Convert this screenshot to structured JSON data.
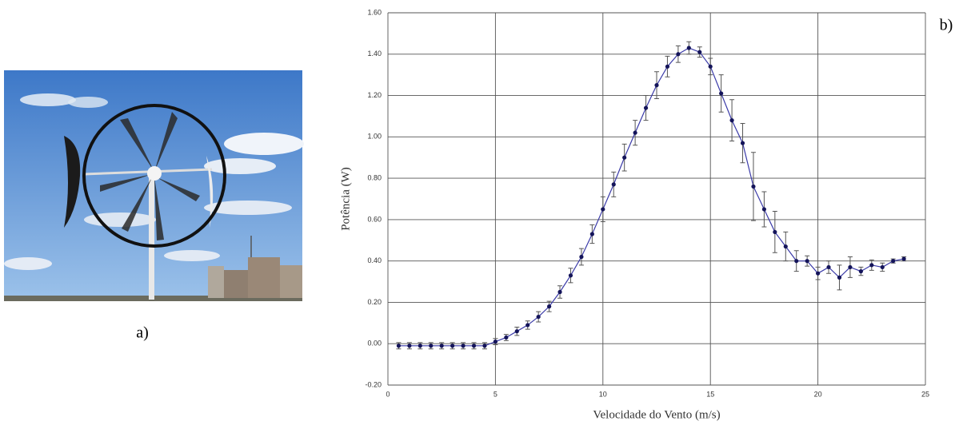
{
  "panel_labels": [
    "a)",
    "b)"
  ],
  "chart_data": {
    "type": "line",
    "xlabel": "Velocidade do Vento (m/s)",
    "ylabel": "Potência (W)",
    "x": [
      0.5,
      1,
      1.5,
      2,
      2.5,
      3,
      3.5,
      4,
      4.5,
      5,
      5.5,
      6,
      6.5,
      7,
      7.5,
      8,
      8.5,
      9,
      9.5,
      10,
      10.5,
      11,
      11.5,
      12,
      12.5,
      13,
      13.5,
      14,
      14.5,
      15,
      15.5,
      16,
      16.5,
      17,
      17.5,
      18,
      18.5,
      19,
      19.5,
      20,
      20.5,
      21,
      21.5,
      22,
      22.5,
      23,
      23.5,
      24
    ],
    "values": [
      -0.01,
      -0.01,
      -0.01,
      -0.01,
      -0.01,
      -0.01,
      -0.01,
      -0.01,
      -0.01,
      0.01,
      0.03,
      0.06,
      0.09,
      0.13,
      0.18,
      0.25,
      0.33,
      0.42,
      0.53,
      0.65,
      0.77,
      0.9,
      1.02,
      1.14,
      1.25,
      1.34,
      1.4,
      1.43,
      1.41,
      1.34,
      1.21,
      1.08,
      0.97,
      0.76,
      0.65,
      0.54,
      0.47,
      0.4,
      0.4,
      0.34,
      0.37,
      0.32,
      0.37,
      0.35,
      0.38,
      0.37,
      0.4,
      0.41
    ],
    "errors": [
      0.015,
      0.015,
      0.015,
      0.015,
      0.015,
      0.015,
      0.015,
      0.015,
      0.015,
      0.015,
      0.015,
      0.02,
      0.02,
      0.025,
      0.025,
      0.03,
      0.035,
      0.04,
      0.045,
      0.06,
      0.06,
      0.065,
      0.06,
      0.06,
      0.065,
      0.05,
      0.04,
      0.03,
      0.025,
      0.04,
      0.09,
      0.1,
      0.095,
      0.165,
      0.085,
      0.1,
      0.07,
      0.05,
      0.025,
      0.03,
      0.03,
      0.06,
      0.05,
      0.02,
      0.025,
      0.02,
      0.01,
      0.01
    ],
    "color": "#3a3aa8",
    "marker_color": "#14145a",
    "error_color": "#555555",
    "xlim": [
      0,
      25
    ],
    "xticks": [
      0,
      5,
      10,
      15,
      20,
      25
    ],
    "ylim": [
      -0.2,
      1.6
    ],
    "yticks": [
      {
        "value": -0.2,
        "label": "-0.20"
      },
      {
        "value": 0,
        "label": "0.00"
      },
      {
        "value": 0.2,
        "label": "0.20"
      },
      {
        "value": 0.4,
        "label": "0.40"
      },
      {
        "value": 0.6,
        "label": "0.60"
      },
      {
        "value": 0.8,
        "label": "0.80"
      },
      {
        "value": 1,
        "label": "1.00"
      },
      {
        "value": 1.2,
        "label": "1.20"
      },
      {
        "value": 1.4,
        "label": "1.40"
      },
      {
        "value": 1.6,
        "label": "1.60"
      }
    ],
    "grid": true
  }
}
